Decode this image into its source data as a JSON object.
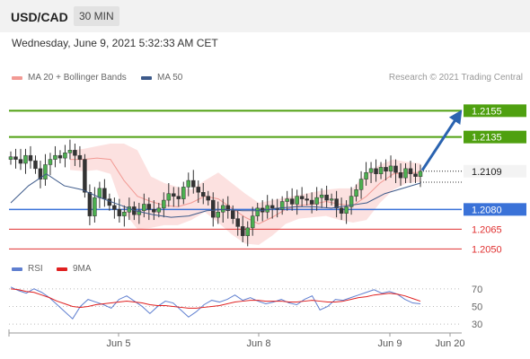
{
  "header": {
    "symbol": "USD/CAD",
    "timeframe": "30 MIN"
  },
  "date": "Wednesday, June 9, 2021 5:32:33 AM CET",
  "legend": {
    "bollinger": {
      "label": "MA 20 + Bollinger Bands",
      "color": "#f29a94"
    },
    "ma50": {
      "label": "MA 50",
      "color": "#3d5a8a"
    },
    "credit": "Research © 2021 Trading Central"
  },
  "rsi_legend": {
    "rsi": {
      "label": "RSI",
      "color": "#5f7fd0"
    },
    "ma9": {
      "label": "9MA",
      "color": "#e02020"
    }
  },
  "chart_data": [
    {
      "type": "line",
      "subtype": "candlestick",
      "title": "",
      "xlabel": "",
      "ylabel": "",
      "ylim": [
        1.204,
        1.2175
      ],
      "x_tick_labels": [
        "Jun 5",
        "Jun 8",
        "Jun 9",
        "Jun 20"
      ],
      "levels": [
        {
          "value": "1.2155",
          "kind": "resistance",
          "color": "#4fa010"
        },
        {
          "value": "1.2135",
          "kind": "resistance",
          "color": "#4fa010"
        },
        {
          "value": "1.2109",
          "kind": "last price",
          "color": "#222222"
        },
        {
          "value": "1.2080",
          "kind": "pivot",
          "color": "#3a72d8"
        },
        {
          "value": "1.2065",
          "kind": "support",
          "color": "#e03030"
        },
        {
          "value": "1.2050",
          "kind": "support",
          "color": "#e03030"
        }
      ],
      "close_series": [
        1.212,
        1.2118,
        1.2115,
        1.2121,
        1.2117,
        1.2111,
        1.2103,
        1.2114,
        1.2118,
        1.2121,
        1.2119,
        1.2123,
        1.2125,
        1.2121,
        1.2118,
        1.2093,
        1.2075,
        1.2089,
        1.2096,
        1.2088,
        1.2083,
        1.208,
        1.2075,
        1.2078,
        1.2082,
        1.2076,
        1.2079,
        1.2084,
        1.208,
        1.2078,
        1.2081,
        1.2087,
        1.2092,
        1.209,
        1.2088,
        1.2097,
        1.2102,
        1.2097,
        1.2093,
        1.209,
        1.2087,
        1.2074,
        1.2078,
        1.2083,
        1.2079,
        1.2073,
        1.2067,
        1.206,
        1.2066,
        1.2075,
        1.2081,
        1.2078,
        1.2083,
        1.2081,
        1.208,
        1.2086,
        1.2088,
        1.2084,
        1.209,
        1.2088,
        1.2087,
        1.2084,
        1.2089,
        1.2091,
        1.2087,
        1.2088,
        1.2081,
        1.2077,
        1.2082,
        1.209,
        1.2095,
        1.2103,
        1.2108,
        1.2111,
        1.2107,
        1.2112,
        1.2109,
        1.2113,
        1.2108,
        1.2104,
        1.2111,
        1.2107,
        1.2105,
        1.2109
      ],
      "ma50_series": [
        1.2085,
        1.2098,
        1.2107,
        1.2098,
        1.2095,
        1.2089,
        1.2084,
        1.2079,
        1.2076,
        1.2074,
        1.2075,
        1.2079,
        1.208,
        1.2079,
        1.2079,
        1.2081,
        1.2082,
        1.2082,
        1.2081,
        1.2083,
        1.2085,
        1.2092,
        1.2096,
        1.21
      ],
      "bollinger": {
        "mid": [
          1.2118,
          1.2118,
          1.2119,
          1.2118,
          1.2102,
          1.209,
          1.2086,
          1.2083,
          1.2082,
          1.2085,
          1.209,
          1.2088,
          1.2081,
          1.2074,
          1.2069,
          1.2074,
          1.208,
          1.2083,
          1.2084,
          1.2086,
          1.2084,
          1.2083,
          1.209,
          1.21,
          1.2107,
          1.2108,
          1.2108
        ],
        "upper": [
          1.2125,
          1.2126,
          1.2128,
          1.213,
          1.213,
          1.2125,
          1.2105,
          1.21,
          1.2097,
          1.2095,
          1.2102,
          1.2108,
          1.21,
          1.2092,
          1.2085,
          1.2087,
          1.2089,
          1.2091,
          1.2093,
          1.2095,
          1.2096,
          1.2096,
          1.2108,
          1.2114,
          1.2118,
          1.2116,
          1.2115
        ],
        "lower": [
          1.211,
          1.2109,
          1.211,
          1.2107,
          1.2078,
          1.2065,
          1.2066,
          1.2068,
          1.2068,
          1.2072,
          1.2078,
          1.207,
          1.2061,
          1.2054,
          1.2053,
          1.206,
          1.2069,
          1.2073,
          1.2074,
          1.2075,
          1.2072,
          1.207,
          1.2072,
          1.2085,
          1.2095,
          1.21,
          1.2101
        ]
      },
      "projection": {
        "from": 1.2109,
        "to": 1.2155
      }
    },
    {
      "type": "line",
      "title": "",
      "xlabel": "",
      "ylabel": "",
      "y_ticks": [
        "70",
        "50",
        "30"
      ],
      "series": [
        {
          "name": "RSI",
          "values": [
            72,
            68,
            65,
            70,
            66,
            60,
            52,
            44,
            36,
            50,
            58,
            55,
            52,
            48,
            58,
            62,
            56,
            50,
            42,
            50,
            56,
            54,
            46,
            38,
            44,
            52,
            57,
            55,
            58,
            63,
            57,
            60,
            56,
            53,
            55,
            58,
            54,
            52,
            58,
            62,
            46,
            50,
            58,
            57,
            60,
            63,
            66,
            69,
            65,
            67,
            64,
            58,
            54,
            53
          ]
        },
        {
          "name": "9MA",
          "values": [
            70,
            69,
            67,
            66,
            63,
            60,
            56,
            53,
            50,
            49,
            50,
            52,
            53,
            54,
            55,
            56,
            55,
            54,
            52,
            51,
            51,
            50,
            49,
            48,
            48,
            49,
            50,
            51,
            53,
            55,
            56,
            57,
            57,
            56,
            56,
            56,
            55,
            55,
            56,
            57,
            56,
            55,
            55,
            56,
            58,
            60,
            61,
            63,
            64,
            65,
            64,
            62,
            59,
            56
          ]
        }
      ]
    }
  ]
}
